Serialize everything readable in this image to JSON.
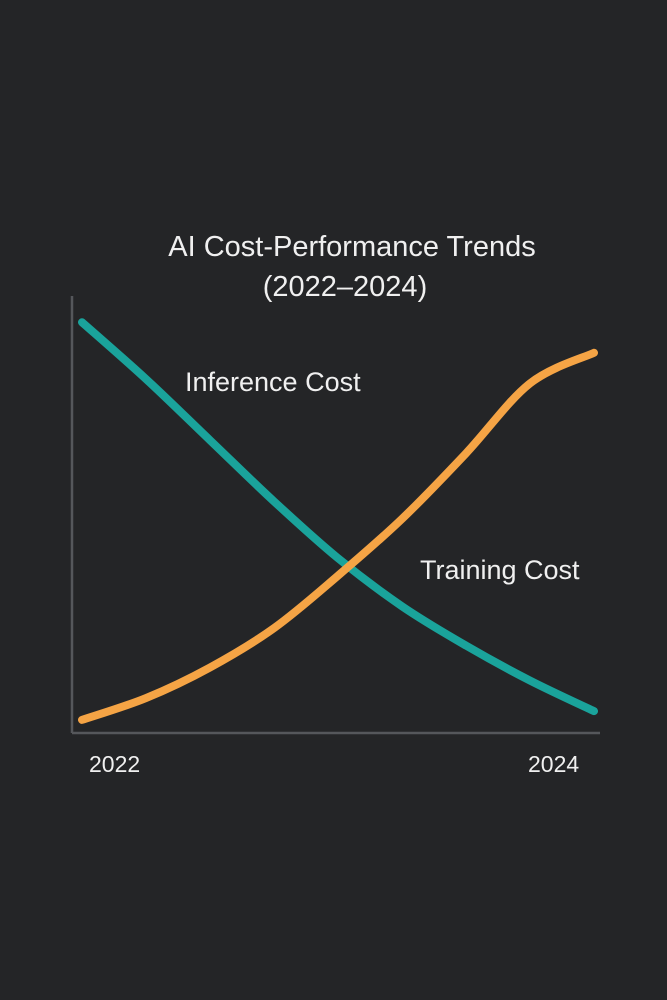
{
  "chart_data": {
    "type": "line",
    "title": "AI Cost-Performance Trends",
    "subtitle": "(2022–2024)",
    "xlabel": "",
    "ylabel": "",
    "x_ticks": [
      "2022",
      "2024"
    ],
    "xlim": [
      2022,
      2024
    ],
    "ylim": [
      0,
      100
    ],
    "grid": false,
    "legend": "inline labels",
    "series": [
      {
        "name": "Inference Cost",
        "color": "#1aa39b",
        "x": [
          2022.0,
          2022.25,
          2022.5,
          2022.75,
          2023.0,
          2023.25,
          2023.5,
          2023.75,
          2024.0
        ],
        "y": [
          94,
          81,
          67,
          53,
          40,
          29,
          20,
          12,
          5
        ]
      },
      {
        "name": "Training Cost",
        "color": "#f5a445",
        "x": [
          2022.0,
          2022.25,
          2022.5,
          2022.75,
          2023.0,
          2023.25,
          2023.5,
          2023.75,
          2024.0
        ],
        "y": [
          3,
          8,
          15,
          24,
          36,
          49,
          64,
          80,
          87
        ]
      }
    ]
  }
}
